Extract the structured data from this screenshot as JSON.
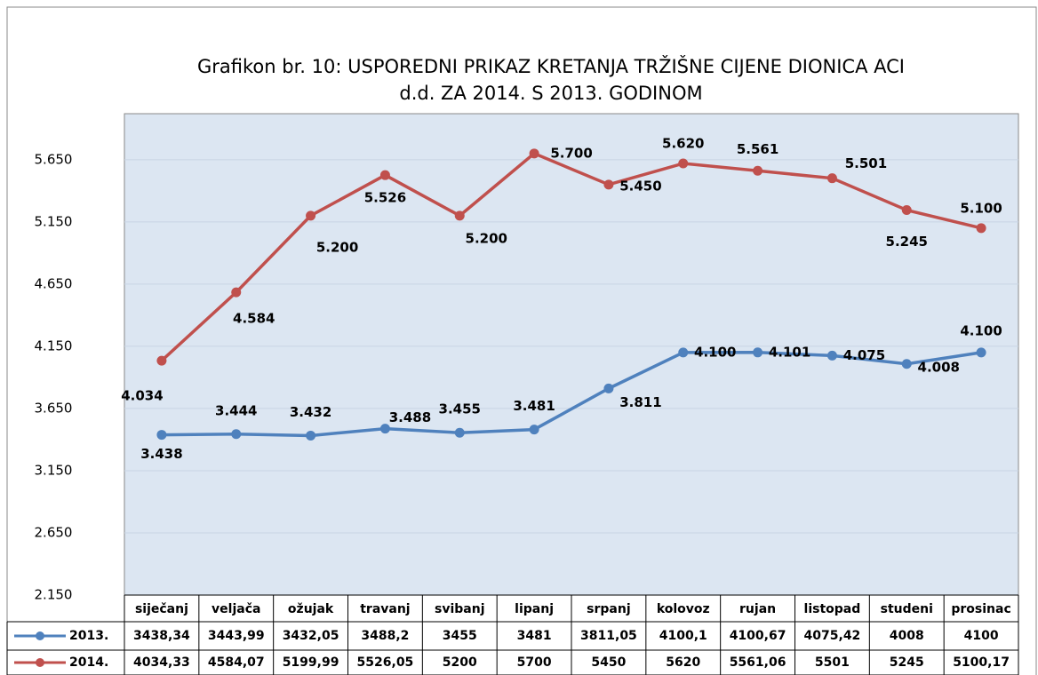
{
  "chart_data": {
    "type": "line",
    "title": [
      "Grafikon br. 10: USPOREDNI PRIKAZ KRETANJA TRŽIŠNE CIJENE DIONICA ACI",
      "d.d. ZA 2014. S  2013. GODINOM"
    ],
    "categories": [
      "siječanj",
      "veljača",
      "ožujak",
      "travanj",
      "svibanj",
      "lipanj",
      "srpanj",
      "kolovoz",
      "rujan",
      "listopad",
      "studeni",
      "prosinac"
    ],
    "series": [
      {
        "name": "2013.",
        "color": "#4f81bd",
        "values": [
          3438.34,
          3443.99,
          3432.05,
          3488.2,
          3455,
          3481,
          3811.05,
          4100.1,
          4100.67,
          4075.42,
          4008,
          4100
        ],
        "value_labels": [
          "3.438",
          "3.444",
          "3.432",
          "3.488",
          "3.455",
          "3.481",
          "3.811",
          "4.100",
          "4.101",
          "4.075",
          "4.008",
          "4.100"
        ],
        "table_labels": [
          "3438,34",
          "3443,99",
          "3432,05",
          "3488,2",
          "3455",
          "3481",
          "3811,05",
          "4100,1",
          "4100,67",
          "4075,42",
          "4008",
          "4100"
        ]
      },
      {
        "name": "2014.",
        "color": "#c0504d",
        "values": [
          4034.33,
          4584.07,
          5199.99,
          5526.05,
          5200,
          5700,
          5450,
          5620,
          5561.06,
          5501,
          5245,
          5100.17
        ],
        "value_labels": [
          "4.034",
          "4.584",
          "5.200",
          "5.526",
          "5.200",
          "5.700",
          "5.450",
          "5.620",
          "5.561",
          "5.501",
          "5.245",
          "5.100"
        ],
        "table_labels": [
          "4034,33",
          "4584,07",
          "5199,99",
          "5526,05",
          "5200",
          "5700",
          "5450",
          "5620",
          "5561,06",
          "5501",
          "5245",
          "5100,17"
        ]
      }
    ],
    "ylim": [
      2150,
      6020
    ],
    "yticks": [
      {
        "value": 2150,
        "label": "2.150"
      },
      {
        "value": 2650,
        "label": "2.650"
      },
      {
        "value": 3150,
        "label": "3.150"
      },
      {
        "value": 3650,
        "label": "3.650"
      },
      {
        "value": 4150,
        "label": "4.150"
      },
      {
        "value": 4650,
        "label": "4.650"
      },
      {
        "value": 5150,
        "label": "5.150"
      },
      {
        "value": 5650,
        "label": "5.650"
      }
    ],
    "grid": true
  }
}
